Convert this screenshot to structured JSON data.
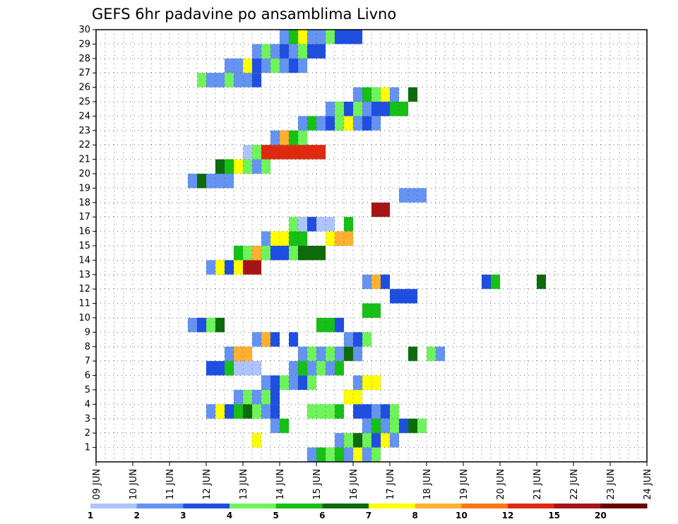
{
  "chart_data": {
    "type": "heatmap",
    "title": "GEFS 6hr padavine po ansamblima Livno",
    "x_tick_labels": [
      "09 JUN",
      "10 JUN",
      "11 JUN",
      "12 JUN",
      "13 JUN",
      "14 JUN",
      "15 JUN",
      "16 JUN",
      "17 JUN",
      "18 JUN",
      "19 JUN",
      "20 JUN",
      "21 JUN",
      "22 JUN",
      "23 JUN",
      "24 JUN"
    ],
    "y_tick_labels": [
      "1",
      "2",
      "3",
      "4",
      "5",
      "6",
      "7",
      "8",
      "9",
      "10",
      "11",
      "12",
      "13",
      "14",
      "15",
      "16",
      "17",
      "18",
      "19",
      "20",
      "21",
      "22",
      "23",
      "24",
      "25",
      "26",
      "27",
      "28",
      "29",
      "30"
    ],
    "x_range_days": [
      0,
      15
    ],
    "y_range_members": [
      0,
      30
    ],
    "steps_per_day": 4,
    "grid": true,
    "colorbar": {
      "labels": [
        "1",
        "2",
        "3",
        "4",
        "5",
        "6",
        "7",
        "8",
        "10",
        "12",
        "15",
        "20"
      ],
      "colors": [
        "#aec4ff",
        "#6493f2",
        "#1f4fe0",
        "#6ef45a",
        "#16c016",
        "#0c6c0c",
        "#ffff00",
        "#ffb030",
        "#ff7814",
        "#e02a10",
        "#a81414",
        "#6a0000"
      ]
    },
    "cells": [
      [
        11,
        0,
        2
      ],
      [
        11,
        1,
        6
      ],
      [
        10,
        1,
        1
      ],
      [
        11,
        1,
        4
      ],
      [
        11,
        2,
        3
      ],
      [
        13,
        1,
        3
      ],
      [
        14,
        1,
        4
      ],
      [
        16,
        2,
        2
      ],
      [
        18,
        1,
        1
      ],
      [
        19,
        1,
        2
      ],
      [
        20,
        1,
        3
      ],
      [
        12,
        2,
        6
      ],
      [
        10,
        2,
        1
      ],
      [
        11,
        2,
        6
      ],
      [
        11,
        3,
        2
      ],
      [
        13,
        2,
        4
      ],
      [
        14,
        3,
        0
      ],
      [
        10,
        2,
        1
      ],
      [
        11,
        2,
        7
      ],
      [
        18,
        1,
        1
      ],
      [
        19,
        1,
        3
      ],
      [
        30,
        1,
        5
      ],
      [
        32,
        1,
        3
      ],
      [
        33,
        1,
        1
      ],
      [
        10,
        2,
        1
      ],
      [
        11,
        2,
        7
      ],
      [
        12,
        1,
        2
      ],
      [
        14,
        1,
        2
      ],
      [
        14,
        2,
        4
      ],
      [
        16,
        1,
        2
      ],
      [
        16,
        2,
        4
      ],
      [
        16,
        3,
        2
      ],
      [
        10,
        1,
        1
      ],
      [
        11,
        2,
        7
      ],
      [
        12,
        1,
        2
      ],
      [
        23,
        1,
        2
      ],
      [
        24,
        1,
        4
      ],
      [
        29,
        1,
        5
      ],
      [
        10,
        2,
        1
      ],
      [
        11,
        3,
        6
      ],
      [
        12,
        1,
        2
      ],
      [
        14,
        2,
        10
      ],
      [
        10,
        3,
        4
      ],
      [
        11,
        3,
        3
      ],
      [
        12,
        3,
        7
      ],
      [
        13,
        1,
        3
      ],
      [
        14,
        2,
        2
      ],
      [
        16,
        3,
        3
      ],
      [
        17,
        3,
        5
      ],
      [
        10,
        1,
        1
      ],
      [
        11,
        3,
        6
      ],
      [
        13,
        2,
        4
      ],
      [
        17,
        1,
        6
      ],
      [
        18,
        2,
        7
      ],
      [
        10,
        4,
        3
      ],
      [
        11,
        4,
        0
      ],
      [
        12,
        1,
        2
      ],
      [
        16,
        1,
        4
      ],
      [
        16,
        2,
        10
      ],
      [
        16,
        3,
        1
      ],
      [
        10,
        5,
        1
      ],
      [
        11,
        2,
        5
      ],
      [
        12,
        1,
        1
      ],
      [
        10,
        3,
        5
      ],
      [
        11,
        3,
        4
      ],
      [
        12,
        3,
        6
      ],
      [
        13,
        3,
        3
      ],
      [
        14,
        1,
        1
      ],
      [
        15,
        1,
        3
      ],
      [
        10,
        7,
        0
      ],
      [
        11,
        7,
        3
      ],
      [
        12,
        7,
        9
      ],
      [
        10,
        2,
        1
      ],
      [
        11,
        2,
        7
      ],
      [
        12,
        1,
        4
      ],
      [
        13,
        1,
        3
      ],
      [
        10,
        1,
        1
      ],
      [
        11,
        2,
        4
      ],
      [
        12,
        1,
        1
      ],
      [
        13,
        2,
        2
      ],
      [
        14,
        1,
        3
      ],
      [
        15,
        1,
        6
      ],
      [
        16,
        1,
        1
      ],
      [
        17,
        1,
        2
      ],
      [
        18,
        1,
        1
      ],
      [
        10,
        1,
        1
      ],
      [
        11,
        1,
        3
      ],
      [
        12,
        1,
        2
      ],
      [
        13,
        1,
        3
      ],
      [
        14,
        1,
        1
      ],
      [
        15,
        2,
        2
      ],
      [
        16,
        1,
        2
      ],
      [
        17,
        2,
        4
      ],
      [
        10,
        1,
        1
      ],
      [
        11,
        1,
        4
      ],
      [
        12,
        1,
        3
      ],
      [
        13,
        1,
        6
      ],
      [
        14,
        1,
        1
      ],
      [
        16,
        1,
        5
      ],
      [
        10,
        2,
        3
      ],
      [
        11,
        2,
        1
      ],
      [
        12,
        1,
        1
      ],
      [
        13,
        2,
        3
      ],
      [
        14,
        2,
        1
      ],
      [
        16,
        1,
        2
      ],
      [
        10,
        1,
        1
      ],
      [
        11,
        1,
        1
      ],
      [
        12,
        2,
        6
      ],
      [
        13,
        1,
        2
      ],
      [
        14,
        1,
        1
      ],
      [
        15,
        2,
        3
      ],
      [
        16,
        1,
        1
      ],
      [
        17,
        1,
        2
      ],
      [
        18,
        1,
        1
      ],
      [
        10,
        1,
        1
      ],
      [
        11,
        2,
        3
      ],
      [
        12,
        1,
        1
      ],
      [
        13,
        3,
        2
      ],
      [
        14,
        1,
        1
      ],
      [
        15,
        1,
        3
      ],
      [
        16,
        2,
        2
      ],
      [
        10,
        1,
        1
      ],
      [
        11,
        1,
        4
      ],
      [
        12,
        3,
        6
      ],
      [
        13,
        2,
        1
      ],
      [
        14,
        1,
        1
      ],
      [
        15,
        1,
        3
      ],
      [
        16,
        3,
        2
      ],
      [
        10,
        1,
        1
      ],
      [
        11,
        1,
        4
      ],
      [
        12,
        2,
        3
      ],
      [
        13,
        1,
        4
      ],
      [
        14,
        1,
        1
      ],
      [
        15,
        1,
        6
      ],
      [
        16,
        1,
        1
      ],
      [
        17,
        1,
        3
      ],
      [
        10,
        1,
        1
      ],
      [
        11,
        1,
        3
      ],
      [
        12,
        2,
        5
      ],
      [
        13,
        1,
        3
      ],
      [
        14,
        1,
        2
      ],
      [
        15,
        1,
        6
      ],
      [
        16,
        1,
        1
      ],
      [
        10,
        2,
        1
      ],
      [
        11,
        3,
        4
      ],
      [
        12,
        1,
        1
      ],
      [
        13,
        2,
        3
      ],
      [
        14,
        1,
        2
      ],
      [
        15,
        1,
        5
      ],
      [
        16,
        1,
        3
      ],
      [
        10,
        1,
        1
      ],
      [
        11,
        2,
        6
      ],
      [
        12,
        1,
        2
      ],
      [
        13,
        1,
        4
      ],
      [
        14,
        1,
        5
      ],
      [
        15,
        1,
        3
      ],
      [
        16,
        1,
        1
      ],
      [
        17,
        1,
        2
      ],
      [
        10,
        1,
        1
      ],
      [
        11,
        1,
        3
      ],
      [
        12,
        1,
        1
      ],
      [
        13,
        1,
        3
      ],
      [
        14,
        1,
        2
      ],
      [
        10,
        1,
        1
      ],
      [
        11,
        1,
        2
      ],
      [
        12,
        1,
        3
      ],
      [
        13,
        1,
        1
      ],
      [
        14,
        1,
        2
      ],
      [
        15,
        1,
        3
      ],
      [
        10,
        1,
        1
      ],
      [
        11,
        1,
        4
      ],
      [
        12,
        1,
        1
      ],
      [
        13,
        1,
        3
      ],
      [
        14,
        1,
        1
      ],
      [
        15,
        1,
        4
      ],
      [
        10,
        1,
        1
      ],
      [
        11,
        1,
        3
      ],
      [
        12,
        1,
        1
      ],
      [
        13,
        2,
        5
      ],
      [
        14,
        1,
        1
      ],
      [
        10,
        1,
        1
      ],
      [
        11,
        1,
        2
      ],
      [
        12,
        1,
        3
      ],
      [
        10,
        1,
        1
      ],
      [
        11,
        1,
        2
      ],
      [
        12,
        1,
        3
      ],
      [
        13,
        1,
        5
      ]
    ]
  }
}
